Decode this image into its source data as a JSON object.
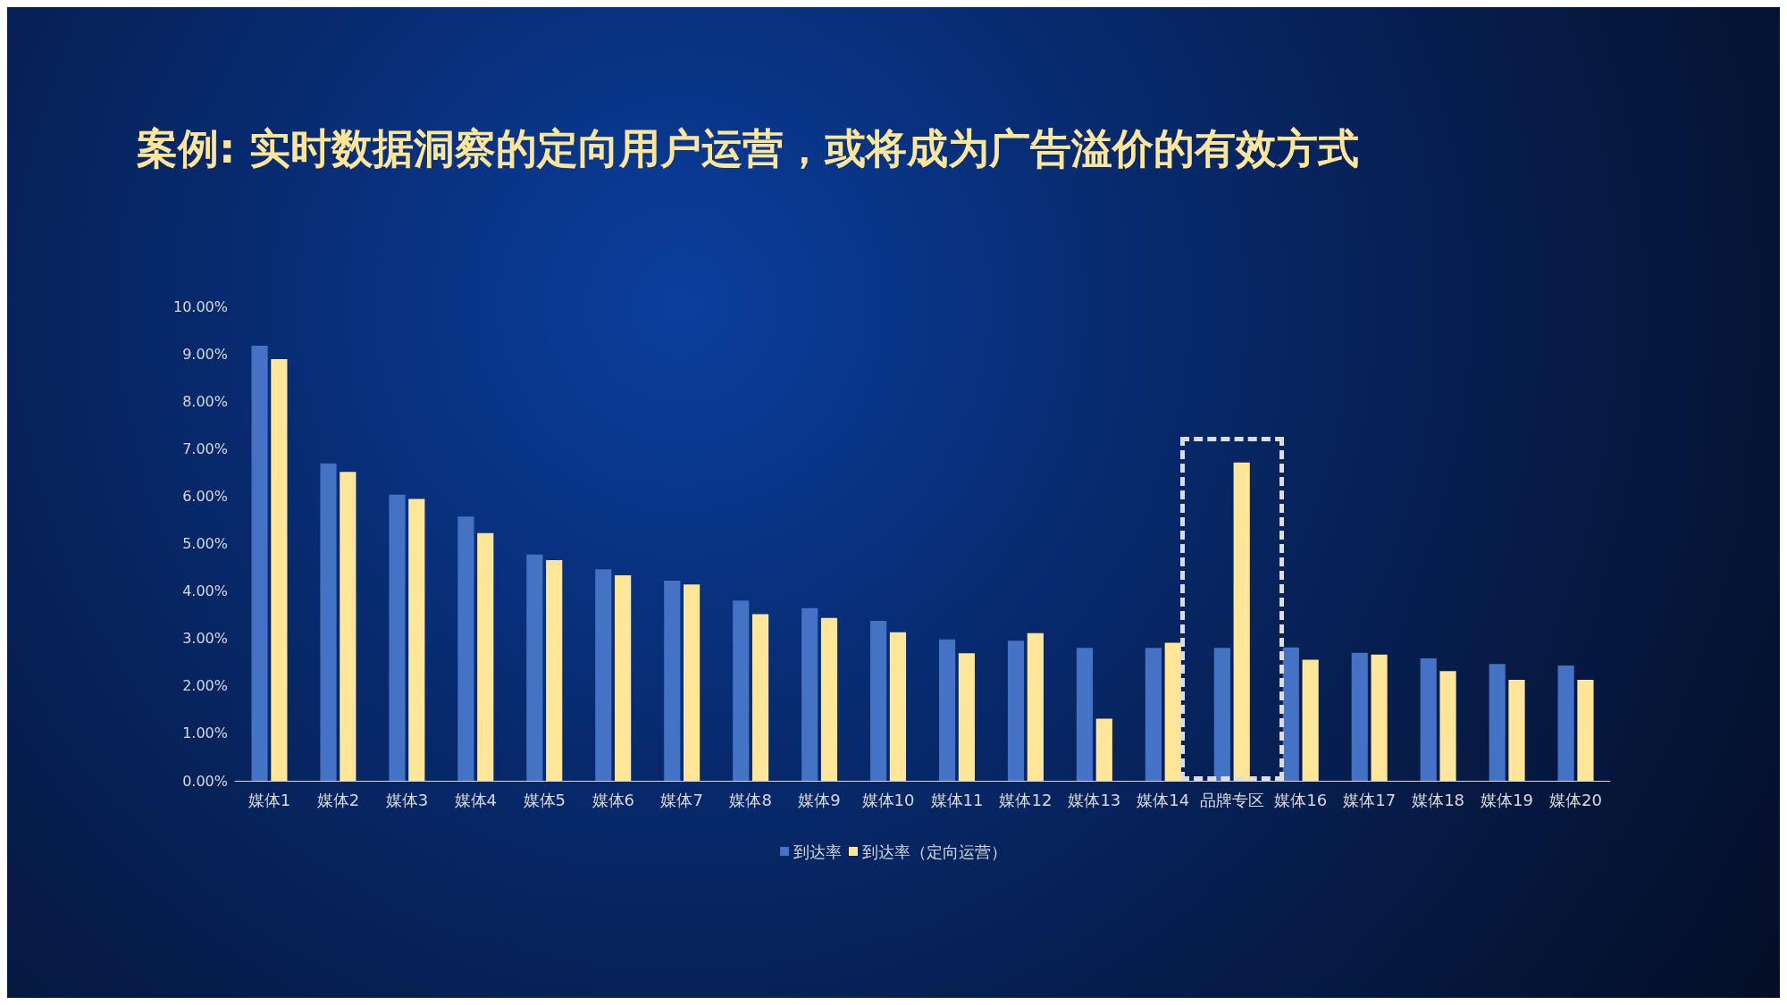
{
  "chart_data": {
    "type": "bar",
    "title": "案例: 实时数据洞察的定向用户运营，或将成为广告溢价的有效方式",
    "categories": [
      "媒体1",
      "媒体2",
      "媒体3",
      "媒体4",
      "媒体5",
      "媒体6",
      "媒体7",
      "媒体8",
      "媒体9",
      "媒体10",
      "媒体11",
      "媒体12",
      "媒体13",
      "媒体14",
      "品牌专区",
      "媒体16",
      "媒体17",
      "媒体18",
      "媒体19",
      "媒体20"
    ],
    "series": [
      {
        "name": "到达率",
        "color": "#4472c4",
        "values": [
          9.17,
          6.69,
          6.03,
          5.57,
          4.77,
          4.46,
          4.22,
          3.8,
          3.64,
          3.37,
          2.98,
          2.95,
          2.8,
          2.8,
          2.8,
          2.81,
          2.7,
          2.58,
          2.46,
          2.43
        ]
      },
      {
        "name": "到达率（定向运营）",
        "color": "#ffe699",
        "values": [
          8.89,
          6.51,
          5.94,
          5.22,
          4.65,
          4.33,
          4.14,
          3.51,
          3.43,
          3.13,
          2.69,
          3.11,
          1.31,
          2.91,
          6.71,
          2.55,
          2.66,
          2.31,
          2.13,
          2.13
        ]
      }
    ],
    "ylim": [
      0,
      10
    ],
    "yticks": [
      {
        "value": 0,
        "label": "0.00%"
      },
      {
        "value": 1,
        "label": "1.00%"
      },
      {
        "value": 2,
        "label": "2.00%"
      },
      {
        "value": 3,
        "label": "3.00%"
      },
      {
        "value": 4,
        "label": "4.00%"
      },
      {
        "value": 5,
        "label": "5.00%"
      },
      {
        "value": 6,
        "label": "6.00%"
      },
      {
        "value": 7,
        "label": "7.00%"
      },
      {
        "value": 8,
        "label": "8.00%"
      },
      {
        "value": 9,
        "label": "9.00%"
      },
      {
        "value": 10,
        "label": "10.00%"
      }
    ],
    "grid": false,
    "legend": "bottom"
  }
}
